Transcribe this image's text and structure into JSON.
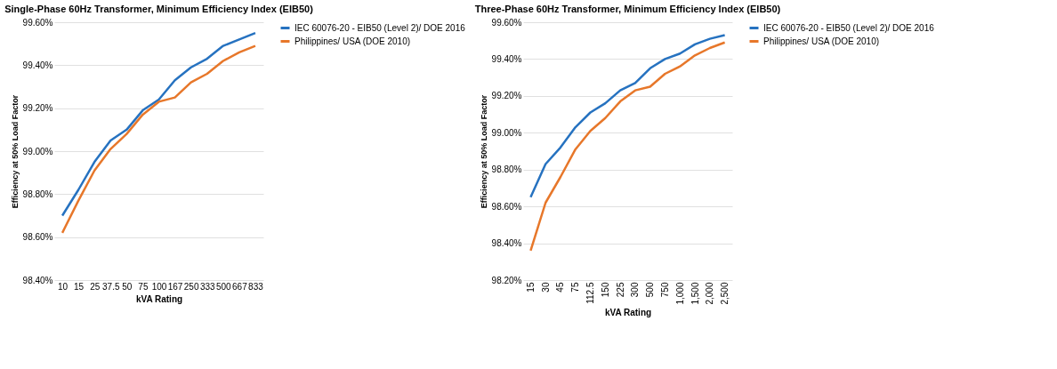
{
  "chart_data": [
    {
      "type": "line",
      "title": "Single-Phase 60Hz Transformer, Minimum Efficiency Index (EIB50)",
      "xlabel": "kVA Rating",
      "ylabel": "Efficiency at 50% Load Factor",
      "categories": [
        "10",
        "15",
        "25",
        "37.5",
        "50",
        "75",
        "100",
        "167",
        "250",
        "333",
        "500",
        "667",
        "833"
      ],
      "series": [
        {
          "name": "IEC 60076-20 - EIB50 (Level 2)/ DOE 2016",
          "color": "#2672c0",
          "values": [
            98.7,
            98.82,
            98.95,
            99.05,
            99.1,
            99.19,
            99.24,
            99.33,
            99.39,
            99.43,
            99.49,
            99.52,
            99.55
          ]
        },
        {
          "name": "Philippines/ USA (DOE 2010)",
          "color": "#e7772a",
          "values": [
            98.62,
            98.77,
            98.91,
            99.01,
            99.08,
            99.17,
            99.23,
            99.25,
            99.32,
            99.36,
            99.42,
            99.46,
            99.49
          ]
        }
      ],
      "ylim": [
        98.4,
        99.6
      ],
      "yticks": [
        {
          "value": 98.4,
          "label": "98.40%"
        },
        {
          "value": 98.6,
          "label": "98.60%"
        },
        {
          "value": 98.8,
          "label": "98.80%"
        },
        {
          "value": 99.0,
          "label": "99.00%"
        },
        {
          "value": 99.2,
          "label": "99.20%"
        },
        {
          "value": 99.4,
          "label": "99.40%"
        },
        {
          "value": 99.6,
          "label": "99.60%"
        }
      ],
      "grid": "y",
      "legend": "right"
    },
    {
      "type": "line",
      "title": "Three-Phase 60Hz Transformer, Minimum Efficiency Index (EIB50)",
      "xlabel": "kVA Rating",
      "ylabel": "Efficiency at 50% Load Factor",
      "categories": [
        "15",
        "30",
        "45",
        "75",
        "112.5",
        "150",
        "225",
        "300",
        "500",
        "750",
        "1,000",
        "1,500",
        "2,000",
        "2,500"
      ],
      "series": [
        {
          "name": "IEC 60076-20 - EIB50 (Level 2)/ DOE 2016",
          "color": "#2672c0",
          "values": [
            98.65,
            98.83,
            98.92,
            99.03,
            99.11,
            99.16,
            99.23,
            99.27,
            99.35,
            99.4,
            99.43,
            99.48,
            99.51,
            99.53
          ]
        },
        {
          "name": "Philippines/ USA (DOE 2010)",
          "color": "#e7772a",
          "values": [
            98.36,
            98.62,
            98.76,
            98.91,
            99.01,
            99.08,
            99.17,
            99.23,
            99.25,
            99.32,
            99.36,
            99.42,
            99.46,
            99.49
          ]
        }
      ],
      "ylim": [
        98.2,
        99.6
      ],
      "yticks": [
        {
          "value": 98.2,
          "label": "98.20%"
        },
        {
          "value": 98.4,
          "label": "98.40%"
        },
        {
          "value": 98.6,
          "label": "98.60%"
        },
        {
          "value": 98.8,
          "label": "98.80%"
        },
        {
          "value": 99.0,
          "label": "99.00%"
        },
        {
          "value": 99.2,
          "label": "99.20%"
        },
        {
          "value": 99.4,
          "label": "99.40%"
        },
        {
          "value": 99.6,
          "label": "99.60%"
        }
      ],
      "grid": "y",
      "legend": "right"
    }
  ]
}
